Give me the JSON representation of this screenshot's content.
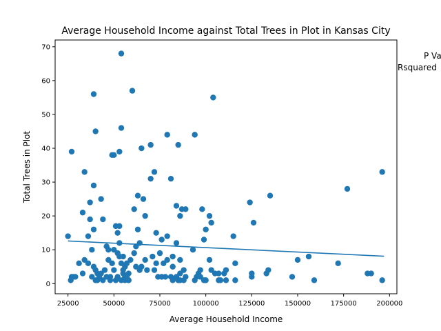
{
  "chart_data": {
    "type": "scatter",
    "title": "Average Household Income against Total Trees in Plot in Kansas City",
    "xlabel": "Average Household Income",
    "ylabel": "Total Trees in Plot",
    "xlim": [
      18000,
      204000
    ],
    "ylim": [
      -3,
      72
    ],
    "xticks": [
      25000,
      50000,
      75000,
      100000,
      125000,
      150000,
      175000,
      200000
    ],
    "yticks": [
      0,
      10,
      20,
      30,
      40,
      50,
      60,
      70
    ],
    "grid": false,
    "point_color": "#1f77b4",
    "line_color": "#1f77b4",
    "annotations": [
      "P Va",
      "Rsquared"
    ],
    "regression_line": {
      "x": [
        25000,
        197000
      ],
      "y": [
        12.6,
        8.1
      ]
    },
    "points": [
      [
        25000,
        14
      ],
      [
        26500,
        1
      ],
      [
        27000,
        39
      ],
      [
        27000,
        2
      ],
      [
        28000,
        2
      ],
      [
        29000,
        2
      ],
      [
        31000,
        6
      ],
      [
        33000,
        3
      ],
      [
        33000,
        21
      ],
      [
        34000,
        33
      ],
      [
        34000,
        7
      ],
      [
        36000,
        14
      ],
      [
        36000,
        6
      ],
      [
        37000,
        24
      ],
      [
        37000,
        19
      ],
      [
        38000,
        10
      ],
      [
        38000,
        2
      ],
      [
        39000,
        56
      ],
      [
        39000,
        29
      ],
      [
        39000,
        16
      ],
      [
        39000,
        5
      ],
      [
        40000,
        45
      ],
      [
        40000,
        4
      ],
      [
        40000,
        1
      ],
      [
        41000,
        3
      ],
      [
        41000,
        1
      ],
      [
        42000,
        2
      ],
      [
        43000,
        3
      ],
      [
        43000,
        25
      ],
      [
        44000,
        19
      ],
      [
        44000,
        1
      ],
      [
        45000,
        4
      ],
      [
        46000,
        2
      ],
      [
        46000,
        11
      ],
      [
        47000,
        7
      ],
      [
        47000,
        10
      ],
      [
        48000,
        1
      ],
      [
        48000,
        2
      ],
      [
        49000,
        6
      ],
      [
        49000,
        38
      ],
      [
        50000,
        38
      ],
      [
        50000,
        10
      ],
      [
        50000,
        4
      ],
      [
        51000,
        17
      ],
      [
        51000,
        1
      ],
      [
        52000,
        15
      ],
      [
        52000,
        2
      ],
      [
        52000,
        9
      ],
      [
        53000,
        39
      ],
      [
        53000,
        17
      ],
      [
        53000,
        8
      ],
      [
        53000,
        12
      ],
      [
        54000,
        68
      ],
      [
        54000,
        46
      ],
      [
        54000,
        6
      ],
      [
        54000,
        1
      ],
      [
        55000,
        4
      ],
      [
        55000,
        8
      ],
      [
        55000,
        3
      ],
      [
        56000,
        1
      ],
      [
        56000,
        5
      ],
      [
        56000,
        2
      ],
      [
        57000,
        2
      ],
      [
        57000,
        6
      ],
      [
        58000,
        1
      ],
      [
        58000,
        3
      ],
      [
        58000,
        1
      ],
      [
        59000,
        7
      ],
      [
        60000,
        57
      ],
      [
        61000,
        9
      ],
      [
        61000,
        22
      ],
      [
        62000,
        11
      ],
      [
        62000,
        5
      ],
      [
        63000,
        26
      ],
      [
        63000,
        16
      ],
      [
        64000,
        4
      ],
      [
        64000,
        12
      ],
      [
        65000,
        5
      ],
      [
        65000,
        40
      ],
      [
        66000,
        25
      ],
      [
        67000,
        7
      ],
      [
        67000,
        20
      ],
      [
        68000,
        4
      ],
      [
        70000,
        31
      ],
      [
        70000,
        41
      ],
      [
        71000,
        8
      ],
      [
        72000,
        33
      ],
      [
        72000,
        4
      ],
      [
        73000,
        15
      ],
      [
        73000,
        6
      ],
      [
        74000,
        2
      ],
      [
        75000,
        9
      ],
      [
        76000,
        13
      ],
      [
        76000,
        2
      ],
      [
        77000,
        6
      ],
      [
        78000,
        2
      ],
      [
        79000,
        44
      ],
      [
        79000,
        14
      ],
      [
        79000,
        7
      ],
      [
        81000,
        31
      ],
      [
        81000,
        2
      ],
      [
        82000,
        8
      ],
      [
        82000,
        5
      ],
      [
        82000,
        1
      ],
      [
        84000,
        23
      ],
      [
        84000,
        12
      ],
      [
        84000,
        2
      ],
      [
        85000,
        41
      ],
      [
        85000,
        1
      ],
      [
        86000,
        20
      ],
      [
        86000,
        7
      ],
      [
        86000,
        3
      ],
      [
        86000,
        1
      ],
      [
        87000,
        22
      ],
      [
        88000,
        4
      ],
      [
        88000,
        1
      ],
      [
        89000,
        22
      ],
      [
        89000,
        2
      ],
      [
        93000,
        10
      ],
      [
        94000,
        44
      ],
      [
        94000,
        1
      ],
      [
        95000,
        2
      ],
      [
        96000,
        3
      ],
      [
        97000,
        4
      ],
      [
        97000,
        2
      ],
      [
        98000,
        22
      ],
      [
        99000,
        1
      ],
      [
        99000,
        13
      ],
      [
        100000,
        16
      ],
      [
        100000,
        1
      ],
      [
        102000,
        20
      ],
      [
        102000,
        7
      ],
      [
        103000,
        18
      ],
      [
        103000,
        4
      ],
      [
        104000,
        55
      ],
      [
        105000,
        3
      ],
      [
        107000,
        3
      ],
      [
        107000,
        1
      ],
      [
        108000,
        1
      ],
      [
        110000,
        3
      ],
      [
        111000,
        4
      ],
      [
        111000,
        1
      ],
      [
        115000,
        14
      ],
      [
        116000,
        6
      ],
      [
        116000,
        1
      ],
      [
        124000,
        24
      ],
      [
        125000,
        2
      ],
      [
        125000,
        3
      ],
      [
        126000,
        18
      ],
      [
        133000,
        3
      ],
      [
        134000,
        4
      ],
      [
        135000,
        26
      ],
      [
        147000,
        2
      ],
      [
        150000,
        7
      ],
      [
        156000,
        8
      ],
      [
        159000,
        1
      ],
      [
        172000,
        6
      ],
      [
        177000,
        28
      ],
      [
        188000,
        3
      ],
      [
        190000,
        3
      ],
      [
        196000,
        33
      ],
      [
        196000,
        1
      ]
    ]
  }
}
